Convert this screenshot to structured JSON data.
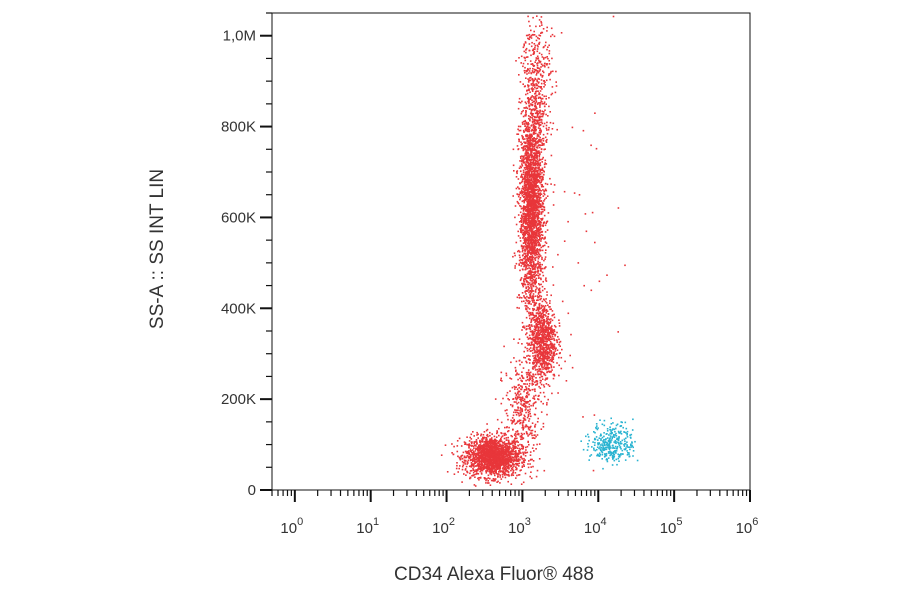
{
  "chart_data": {
    "type": "scatter",
    "title": "",
    "xlabel": "CD34 Alexa Fluor® 488",
    "ylabel": "SS-A :: SS INT LIN",
    "x_scale": "log",
    "xlim": [
      0.5,
      1000000
    ],
    "y_scale": "linear",
    "ylim": [
      0,
      1050000
    ],
    "grid": false,
    "legend": "none",
    "x_ticks": [
      {
        "value": 1,
        "base": "10",
        "exp": "0"
      },
      {
        "value": 10,
        "base": "10",
        "exp": "1"
      },
      {
        "value": 100,
        "base": "10",
        "exp": "2"
      },
      {
        "value": 1000,
        "base": "10",
        "exp": "3"
      },
      {
        "value": 10000,
        "base": "10",
        "exp": "4"
      },
      {
        "value": 100000,
        "base": "10",
        "exp": "5"
      },
      {
        "value": 1000000,
        "base": "10",
        "exp": "6"
      }
    ],
    "y_ticks": [
      {
        "value": 0,
        "label": "0"
      },
      {
        "value": 200000,
        "label": "200K"
      },
      {
        "value": 400000,
        "label": "400K"
      },
      {
        "value": 600000,
        "label": "600K"
      },
      {
        "value": 800000,
        "label": "800K"
      },
      {
        "value": 1000000,
        "label": "1,0M"
      }
    ],
    "series": [
      {
        "color": "#e8363a",
        "populations": [
          {
            "x_center": 400,
            "x_spread_decades": 0.18,
            "y_center": 75000,
            "y_spread": 22000,
            "count": 1800
          },
          {
            "x_center": 1800,
            "x_spread_decades": 0.09,
            "y_center": 330000,
            "y_spread": 45000,
            "count": 900
          },
          {
            "x_center": 1300,
            "x_spread_decades": 0.08,
            "y_center": 620000,
            "y_spread": 110000,
            "count": 2600
          },
          {
            "x_center": 1500,
            "x_spread_decades": 0.1,
            "y_center": 900000,
            "y_spread": 90000,
            "count": 450
          },
          {
            "x_center": 1000,
            "x_spread_decades": 0.12,
            "y_center": 180000,
            "y_spread": 60000,
            "count": 400
          },
          {
            "x_center": 3000,
            "x_spread_decades": 0.35,
            "y_center": 500000,
            "y_spread": 250000,
            "count": 60
          }
        ]
      },
      {
        "color": "#29b3d1",
        "populations": [
          {
            "x_center": 15000,
            "x_spread_decades": 0.14,
            "y_center": 105000,
            "y_spread": 22000,
            "count": 330
          }
        ]
      }
    ]
  }
}
